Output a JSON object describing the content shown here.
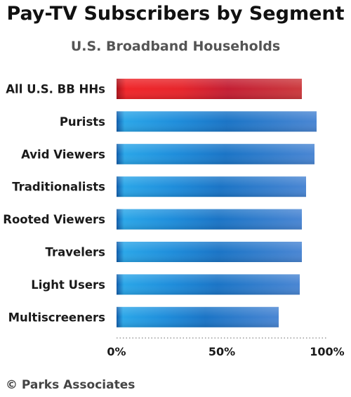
{
  "chart_data": {
    "type": "bar",
    "orientation": "horizontal",
    "title": "Pay-TV Subscribers by Segment",
    "subtitle": "U.S. Broadband Households",
    "categories": [
      "All U.S. BB HHs",
      "Purists",
      "Avid Viewers",
      "Traditionalists",
      "Rooted Viewers",
      "Travelers",
      "Light Users",
      "Multiscreeners"
    ],
    "values": [
      88,
      95,
      94,
      90,
      88,
      88,
      87,
      77
    ],
    "highlight_index": 0,
    "colors": {
      "highlight": "#cc2a36",
      "default": "#2b86d6"
    },
    "x_ticks": [
      "0%",
      "50%",
      "100%"
    ],
    "xlim": [
      0,
      100
    ],
    "grid": false
  },
  "footer": {
    "source": "© Parks Associates"
  }
}
